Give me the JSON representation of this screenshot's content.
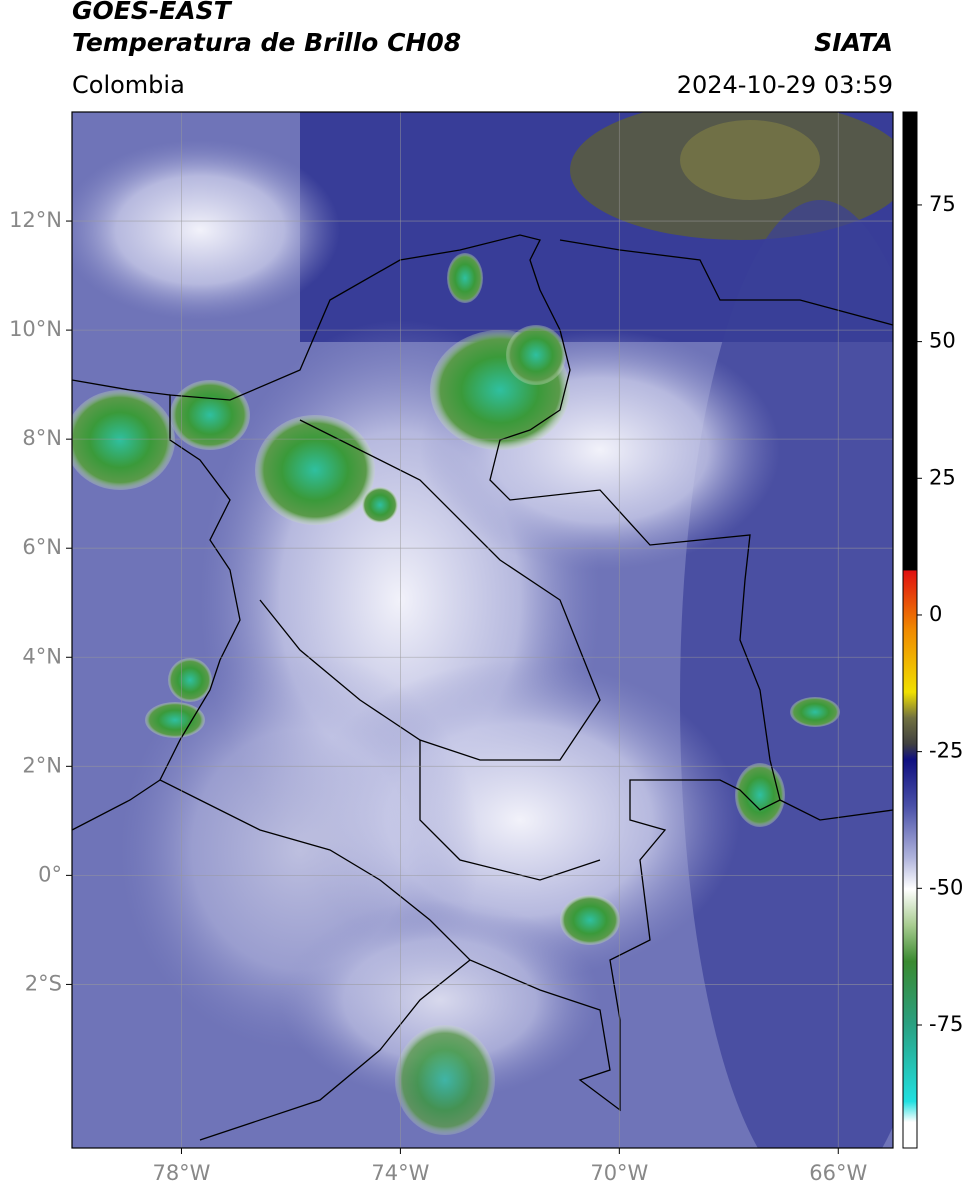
{
  "header": {
    "title": "GOES-EAST",
    "subtitle": "Temperatura de Brillo CH08",
    "source": "SIATA",
    "region": "Colombia",
    "timestamp": "2024-10-29 03:59"
  },
  "map": {
    "xlim": [
      -80,
      -65
    ],
    "ylim": [
      -5,
      14
    ],
    "xticks": [
      {
        "value": -78,
        "label": "78°W"
      },
      {
        "value": -74,
        "label": "74°W"
      },
      {
        "value": -70,
        "label": "70°W"
      },
      {
        "value": -66,
        "label": "66°W"
      }
    ],
    "yticks": [
      {
        "value": 12,
        "label": "12°N"
      },
      {
        "value": 10,
        "label": "10°N"
      },
      {
        "value": 8,
        "label": "8°N"
      },
      {
        "value": 6,
        "label": "6°N"
      },
      {
        "value": 4,
        "label": "4°N"
      },
      {
        "value": 2,
        "label": "2°N"
      },
      {
        "value": 0,
        "label": "0°"
      },
      {
        "value": -2,
        "label": "2°S"
      }
    ],
    "grid": true
  },
  "colorbar": {
    "lim": [
      -97.5,
      92
    ],
    "ticks": [
      75,
      50,
      25,
      0,
      -25,
      -50,
      -75
    ]
  }
}
